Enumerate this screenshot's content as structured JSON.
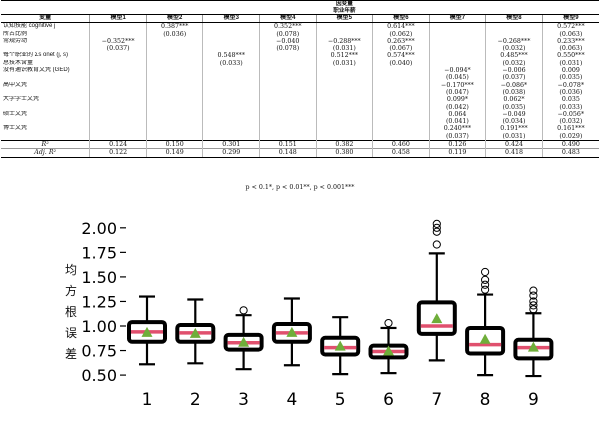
{
  "table": {
    "header_top": "因变量",
    "header_sub": "职业年薪",
    "col_variable": "变量",
    "models": [
      "模型1",
      "模型2",
      "模型3",
      "模型4",
      "模型5",
      "模型6",
      "模型7",
      "模型8",
      "模型9"
    ],
    "rows": [
      {
        "label": "认知技能 cognitive j",
        "cells": [
          "",
          "0.387***",
          "",
          "0.352***",
          "",
          "0.614***",
          "",
          "",
          "0.572***"
        ]
      },
      {
        "label": "所占比例",
        "cells": [
          "",
          "(0.036)",
          "",
          "(0.078)",
          "",
          "(0.062)",
          "",
          "",
          "(0.063)"
        ]
      },
      {
        "label": "常规劳动",
        "cells": [
          "−0.352***",
          "",
          "",
          "−0.040",
          "−0.288***",
          "0.263***",
          "",
          "−0.268***",
          "0.233***"
        ]
      },
      {
        "label": "",
        "cells": [
          "(0.037)",
          "",
          "",
          "(0.078)",
          "(0.031)",
          "(0.067)",
          "",
          "(0.032)",
          "(0.063)"
        ]
      },
      {
        "label": "每个职业的 Σs onet (j, s)",
        "cells": [
          "",
          "",
          "0.548***",
          "",
          "0.512***",
          "0.574***",
          "",
          "0.485***",
          "0.550***"
        ]
      },
      {
        "label": "总技术含量",
        "cells": [
          "",
          "",
          "(0.033)",
          "",
          "(0.031)",
          "(0.040)",
          "",
          "(0.032)",
          "(0.031)"
        ]
      },
      {
        "label": "没有通识教育文凭 (GED)",
        "cells": [
          "",
          "",
          "",
          "",
          "",
          "",
          "−0.094*",
          "−0.006",
          "0.009"
        ]
      },
      {
        "label": "",
        "cells": [
          "",
          "",
          "",
          "",
          "",
          "",
          "(0.045)",
          "(0.037)",
          "(0.035)"
        ]
      },
      {
        "label": "高中文凭",
        "cells": [
          "",
          "",
          "",
          "",
          "",
          "",
          "−0.170***",
          "−0.086*",
          "−0.078*"
        ]
      },
      {
        "label": "",
        "cells": [
          "",
          "",
          "",
          "",
          "",
          "",
          "(0.047)",
          "(0.038)",
          "(0.036)"
        ]
      },
      {
        "label": "大学学士文凭",
        "cells": [
          "",
          "",
          "",
          "",
          "",
          "",
          "0.099*",
          "0.062*",
          "0.035"
        ]
      },
      {
        "label": "",
        "cells": [
          "",
          "",
          "",
          "",
          "",
          "",
          "(0.042)",
          "(0.035)",
          "(0.033)"
        ]
      },
      {
        "label": "硕士文凭",
        "cells": [
          "",
          "",
          "",
          "",
          "",
          "",
          "0.064",
          "−0.049",
          "−0.056*"
        ]
      },
      {
        "label": "",
        "cells": [
          "",
          "",
          "",
          "",
          "",
          "",
          "(0.041)",
          "(0.034)",
          "(0.032)"
        ]
      },
      {
        "label": "博士文凭",
        "cells": [
          "",
          "",
          "",
          "",
          "",
          "",
          "0.240***",
          "0.191***",
          "0.161***"
        ]
      },
      {
        "label": "",
        "cells": [
          "",
          "",
          "",
          "",
          "",
          "",
          "(0.037)",
          "(0.031)",
          "(0.029)"
        ]
      }
    ],
    "r2_label": "R²",
    "r2": [
      "0.124",
      "0.150",
      "0.301",
      "0.151",
      "0.382",
      "0.460",
      "0.126",
      "0.424",
      "0.490"
    ],
    "adj_r2_label": "Adj. R²",
    "adj_r2": [
      "0.122",
      "0.149",
      "0.299",
      "0.148",
      "0.380",
      "0.458",
      "0.119",
      "0.418",
      "0.483"
    ],
    "note": "p < 0.1*, p < 0.01**, p < 0.001***"
  },
  "chart_data": {
    "type": "box",
    "ylabel": "均方根误差",
    "ylim": [
      0.45,
      2.1
    ],
    "yticks": [
      "0.50",
      "0.75",
      "1.00",
      "1.25",
      "1.50",
      "1.75",
      "2.00"
    ],
    "categories": [
      "1",
      "2",
      "3",
      "4",
      "5",
      "6",
      "7",
      "8",
      "9"
    ],
    "colors": {
      "box": "#000000",
      "median": "#e0506e",
      "mean": "#6fae3a",
      "flier": "#000000"
    },
    "boxes": [
      {
        "name": "1",
        "whislo": 0.61,
        "q1": 0.84,
        "med": 0.94,
        "q3": 1.04,
        "whishi": 1.3,
        "mean": 0.93,
        "fliers": []
      },
      {
        "name": "2",
        "whislo": 0.62,
        "q1": 0.84,
        "med": 0.93,
        "q3": 1.01,
        "whishi": 1.27,
        "mean": 0.92,
        "fliers": []
      },
      {
        "name": "3",
        "whislo": 0.56,
        "q1": 0.76,
        "med": 0.83,
        "q3": 0.91,
        "whishi": 1.11,
        "mean": 0.83,
        "fliers": [
          1.16
        ]
      },
      {
        "name": "4",
        "whislo": 0.6,
        "q1": 0.84,
        "med": 0.93,
        "q3": 1.02,
        "whishi": 1.28,
        "mean": 0.93,
        "fliers": []
      },
      {
        "name": "5",
        "whislo": 0.51,
        "q1": 0.71,
        "med": 0.78,
        "q3": 0.88,
        "whishi": 1.09,
        "mean": 0.79,
        "fliers": []
      },
      {
        "name": "6",
        "whislo": 0.52,
        "q1": 0.68,
        "med": 0.74,
        "q3": 0.8,
        "whishi": 0.98,
        "mean": 0.74,
        "fliers": [
          1.03
        ]
      },
      {
        "name": "7",
        "whislo": 0.65,
        "q1": 0.92,
        "med": 1.0,
        "q3": 1.24,
        "whishi": 1.74,
        "mean": 1.07,
        "fliers": [
          1.83,
          1.96,
          2.0,
          2.04
        ]
      },
      {
        "name": "8",
        "whislo": 0.5,
        "q1": 0.72,
        "med": 0.81,
        "q3": 0.98,
        "whishi": 1.32,
        "mean": 0.86,
        "fliers": [
          1.37,
          1.42,
          1.47,
          1.55
        ]
      },
      {
        "name": "9",
        "whislo": 0.49,
        "q1": 0.67,
        "med": 0.78,
        "q3": 0.86,
        "whishi": 1.13,
        "mean": 0.78,
        "fliers": [
          1.17,
          1.21,
          1.25,
          1.31,
          1.36
        ]
      }
    ]
  }
}
